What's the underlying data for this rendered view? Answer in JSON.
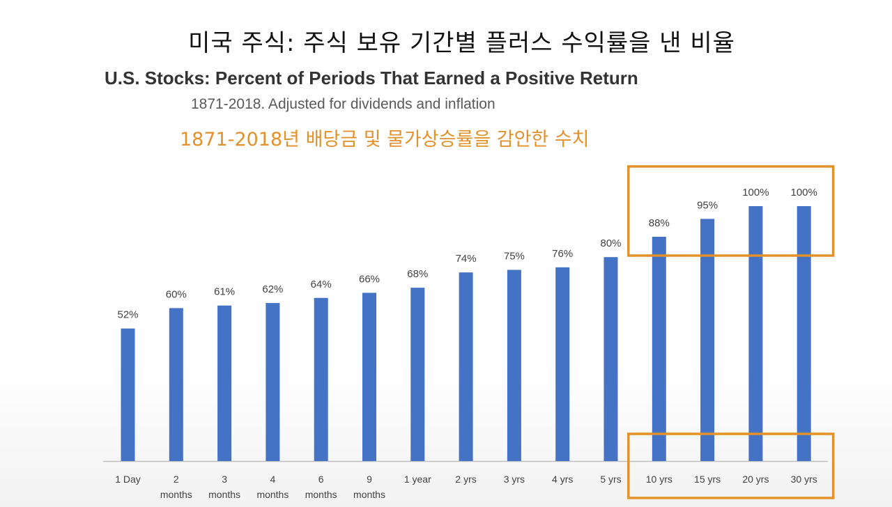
{
  "header": {
    "korean_title": "미국 주식: 주식 보유 기간별 플러스 수익률을 낸 비율",
    "english_title": "U.S. Stocks: Percent of Periods That Earned a Positive Return",
    "subtitle": "1871-2018. Adjusted for dividends and inflation",
    "korean_subtitle": "1871-2018년 배당금 및 물가상승률을 감안한 수치"
  },
  "colors": {
    "bar": "#4472C4",
    "highlight": "#E2912B",
    "axis": "#BFBFBF",
    "label_text": "#404040"
  },
  "chart_data": {
    "type": "bar",
    "title": "U.S. Stocks: Percent of Periods That Earned a Positive Return",
    "subtitle": "1871-2018. Adjusted for dividends and inflation",
    "xlabel": "",
    "ylabel": "",
    "ylim": [
      0,
      100
    ],
    "grid": false,
    "categories": [
      [
        "1 Day"
      ],
      [
        "2",
        "months"
      ],
      [
        "3",
        "months"
      ],
      [
        "4",
        "months"
      ],
      [
        "6",
        "months"
      ],
      [
        "9",
        "months"
      ],
      [
        "1 year"
      ],
      [
        "2 yrs"
      ],
      [
        "3 yrs"
      ],
      [
        "4 yrs"
      ],
      [
        "5 yrs"
      ],
      [
        "10 yrs"
      ],
      [
        "15 yrs"
      ],
      [
        "20 yrs"
      ],
      [
        "30 yrs"
      ]
    ],
    "values": [
      52,
      60,
      61,
      62,
      64,
      66,
      68,
      74,
      75,
      76,
      80,
      88,
      95,
      100,
      100
    ],
    "data_labels": [
      "52%",
      "60%",
      "61%",
      "62%",
      "64%",
      "66%",
      "68%",
      "74%",
      "75%",
      "76%",
      "80%",
      "88%",
      "95%",
      "100%",
      "100%"
    ],
    "highlighted_categories": [
      "10 yrs",
      "15 yrs",
      "20 yrs",
      "30 yrs"
    ]
  }
}
